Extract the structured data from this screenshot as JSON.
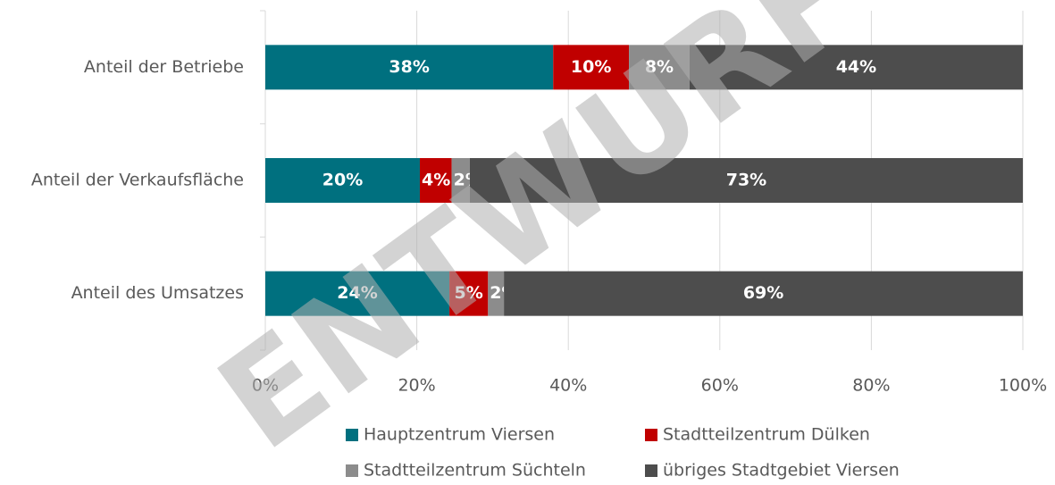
{
  "chart_data": {
    "type": "stacked_bar_horizontal",
    "watermark": "ENTWURF",
    "categories": [
      "Anteil der Betriebe",
      "Anteil der Verkaufsfläche",
      "Anteil des Umsatzes"
    ],
    "series": [
      {
        "name": "Hauptzentrum Viersen",
        "color": "#00707f",
        "values": [
          38,
          20.4,
          24.3
        ],
        "value_labels": [
          "38%",
          "20%",
          "24%"
        ]
      },
      {
        "name": "Stadtteilzentrum Dülken",
        "color": "#c00000",
        "values": [
          10,
          4.2,
          5.1
        ],
        "value_labels": [
          "10%",
          "4%",
          "5%"
        ]
      },
      {
        "name": "Stadtteilzentrum Süchteln",
        "color": "#8c8c8c",
        "values": [
          8,
          2.4,
          2.1
        ],
        "value_labels": [
          "8%",
          "2%",
          "2%"
        ]
      },
      {
        "name": "übriges Stadtgebiet Viersen",
        "color": "#4d4d4d",
        "values": [
          44,
          73,
          68.5
        ],
        "value_labels": [
          "44%",
          "73%",
          "69%"
        ]
      }
    ],
    "xlim": [
      0,
      100
    ],
    "xticks": [
      {
        "value": 0,
        "label": "0%"
      },
      {
        "value": 20,
        "label": "20%"
      },
      {
        "value": 40,
        "label": "40%"
      },
      {
        "value": 60,
        "label": "60%"
      },
      {
        "value": 80,
        "label": "80%"
      },
      {
        "value": 100,
        "label": "100%"
      }
    ],
    "grid": true,
    "legend": "bottom"
  }
}
